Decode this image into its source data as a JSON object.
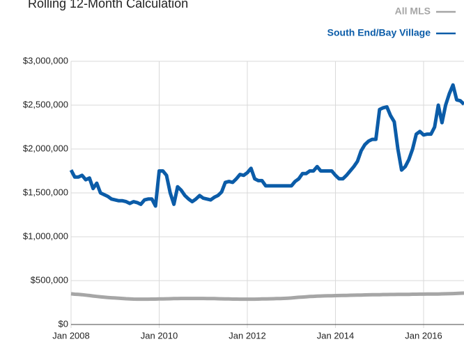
{
  "chart_data": {
    "type": "line",
    "title": "Rolling 12-Month Calculation",
    "x": [
      "2008-01",
      "2008-02",
      "2008-03",
      "2008-04",
      "2008-05",
      "2008-06",
      "2008-07",
      "2008-08",
      "2008-09",
      "2008-10",
      "2008-11",
      "2008-12",
      "2009-01",
      "2009-02",
      "2009-03",
      "2009-04",
      "2009-05",
      "2009-06",
      "2009-07",
      "2009-08",
      "2009-09",
      "2009-10",
      "2009-11",
      "2009-12",
      "2010-01",
      "2010-02",
      "2010-03",
      "2010-04",
      "2010-05",
      "2010-06",
      "2010-07",
      "2010-08",
      "2010-09",
      "2010-10",
      "2010-11",
      "2010-12",
      "2011-01",
      "2011-02",
      "2011-03",
      "2011-04",
      "2011-05",
      "2011-06",
      "2011-07",
      "2011-08",
      "2011-09",
      "2011-10",
      "2011-11",
      "2011-12",
      "2012-01",
      "2012-02",
      "2012-03",
      "2012-04",
      "2012-05",
      "2012-06",
      "2012-07",
      "2012-08",
      "2012-09",
      "2012-10",
      "2012-11",
      "2012-12",
      "2013-01",
      "2013-02",
      "2013-03",
      "2013-04",
      "2013-05",
      "2013-06",
      "2013-07",
      "2013-08",
      "2013-09",
      "2013-10",
      "2013-11",
      "2013-12",
      "2014-01",
      "2014-02",
      "2014-03",
      "2014-04",
      "2014-05",
      "2014-06",
      "2014-07",
      "2014-08",
      "2014-09",
      "2014-10",
      "2014-11",
      "2014-12",
      "2015-01",
      "2015-02",
      "2015-03",
      "2015-04",
      "2015-05",
      "2015-06",
      "2015-07",
      "2015-08",
      "2015-09",
      "2015-10",
      "2015-11",
      "2015-12",
      "2016-01",
      "2016-02",
      "2016-03",
      "2016-04",
      "2016-05",
      "2016-06",
      "2016-07",
      "2016-08",
      "2016-09",
      "2016-10",
      "2016-11",
      "2016-12"
    ],
    "series": [
      {
        "name": "All MLS",
        "color": "#a6a6a6",
        "values": [
          350000,
          345000,
          343000,
          340000,
          335000,
          330000,
          325000,
          320000,
          316000,
          312000,
          308000,
          305000,
          302000,
          300000,
          297000,
          294000,
          292000,
          290000,
          289000,
          289000,
          289000,
          289000,
          290000,
          290000,
          291000,
          292000,
          293000,
          294000,
          295000,
          296000,
          297000,
          297000,
          297000,
          297000,
          297000,
          297000,
          297000,
          296000,
          296000,
          295000,
          294000,
          293000,
          292000,
          291000,
          290000,
          290000,
          289000,
          289000,
          289000,
          289000,
          289000,
          290000,
          291000,
          292000,
          293000,
          294000,
          295000,
          296000,
          298000,
          300000,
          302000,
          306000,
          310000,
          313000,
          316000,
          319000,
          321000,
          323000,
          325000,
          326000,
          327000,
          328000,
          329000,
          330000,
          331000,
          332000,
          333000,
          334000,
          335000,
          336000,
          337000,
          338000,
          339000,
          340000,
          340000,
          341000,
          341000,
          342000,
          342000,
          343000,
          343000,
          344000,
          344000,
          345000,
          345000,
          346000,
          346000,
          347000,
          347000,
          348000,
          348000,
          349000,
          350000,
          351000,
          352000,
          354000,
          356000,
          358000
        ]
      },
      {
        "name": "South End/Bay Village",
        "color": "#0b5ca8",
        "values": [
          1760000,
          1680000,
          1680000,
          1700000,
          1650000,
          1670000,
          1550000,
          1610000,
          1500000,
          1480000,
          1460000,
          1430000,
          1420000,
          1410000,
          1410000,
          1400000,
          1380000,
          1400000,
          1390000,
          1370000,
          1420000,
          1430000,
          1430000,
          1350000,
          1750000,
          1750000,
          1700000,
          1500000,
          1370000,
          1570000,
          1530000,
          1470000,
          1430000,
          1400000,
          1430000,
          1470000,
          1440000,
          1430000,
          1420000,
          1450000,
          1470000,
          1510000,
          1620000,
          1630000,
          1620000,
          1660000,
          1710000,
          1700000,
          1730000,
          1780000,
          1660000,
          1640000,
          1640000,
          1580000,
          1580000,
          1580000,
          1580000,
          1580000,
          1580000,
          1580000,
          1580000,
          1630000,
          1660000,
          1720000,
          1720000,
          1750000,
          1750000,
          1800000,
          1750000,
          1750000,
          1750000,
          1750000,
          1700000,
          1660000,
          1660000,
          1700000,
          1750000,
          1800000,
          1860000,
          1980000,
          2050000,
          2090000,
          2110000,
          2110000,
          2450000,
          2470000,
          2480000,
          2380000,
          2310000,
          2000000,
          1760000,
          1800000,
          1880000,
          2000000,
          2170000,
          2200000,
          2160000,
          2170000,
          2170000,
          2250000,
          2500000,
          2300000,
          2500000,
          2630000,
          2730000,
          2560000,
          2550000,
          2510000
        ]
      }
    ],
    "ylim": [
      0,
      3000000
    ],
    "yticks": [
      {
        "value": 0,
        "label": "$0"
      },
      {
        "value": 500000,
        "label": "$500,000"
      },
      {
        "value": 1000000,
        "label": "$1,000,000"
      },
      {
        "value": 1500000,
        "label": "$1,500,000"
      },
      {
        "value": 2000000,
        "label": "$2,000,000"
      },
      {
        "value": 2500000,
        "label": "$2,500,000"
      },
      {
        "value": 3000000,
        "label": "$3,000,000"
      }
    ],
    "xticks": [
      {
        "value": "2008-01",
        "label": "Jan 2008"
      },
      {
        "value": "2010-01",
        "label": "Jan 2010"
      },
      {
        "value": "2012-01",
        "label": "Jan 2012"
      },
      {
        "value": "2014-01",
        "label": "Jan 2014"
      },
      {
        "value": "2016-01",
        "label": "Jan 2016"
      }
    ],
    "grid": true,
    "legend": "top-right"
  }
}
